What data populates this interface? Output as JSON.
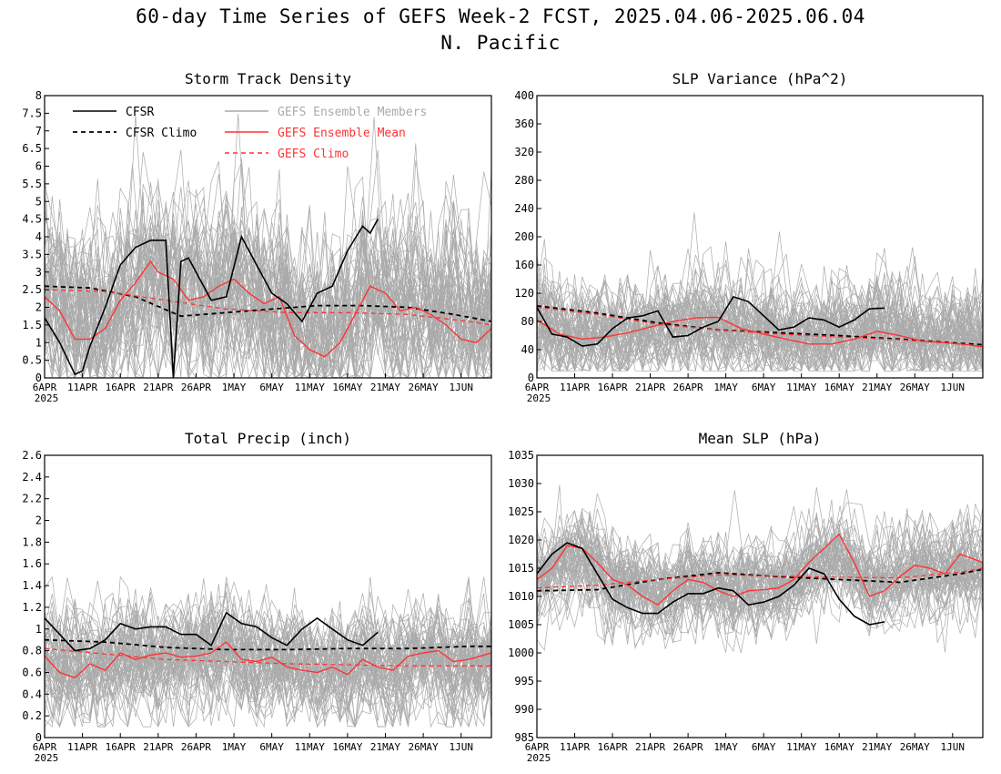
{
  "title": "60-day Time Series of GEFS Week-2 FCST, 2025.04.06-2025.06.04",
  "subtitle": "N. Pacific",
  "colors": {
    "cfsr": "#000000",
    "ens_member": "#aaaaaa",
    "ens_mean": "#ff3333",
    "gefs_climo": "#ff3333"
  },
  "legend": {
    "cfsr": "CFSR",
    "cfsr_climo": "CFSR Climo",
    "ens_members": "GEFS Ensemble Members",
    "ens_mean": "GEFS Ensemble Mean",
    "gefs_climo": "GEFS Climo"
  },
  "x_ticks": [
    "6APR",
    "11APR",
    "16APR",
    "21APR",
    "26APR",
    "1MAY",
    "6MAY",
    "11MAY",
    "16MAY",
    "21MAY",
    "26MAY",
    "1JUN"
  ],
  "x_year": "2025",
  "chart_data": [
    {
      "type": "line",
      "title": "Storm Track Density",
      "legend_position": "top-left",
      "x_start": "2025-04-06",
      "x_end": "2025-06-04",
      "ylim": [
        0,
        8
      ],
      "yticks": [
        "0",
        "0.5",
        "1",
        "1.5",
        "2",
        "2.5",
        "3",
        "3.5",
        "4",
        "4.5",
        "5",
        "5.5",
        "6",
        "6.5",
        "7",
        "7.5",
        "8"
      ],
      "ytick_values": [
        0,
        0.5,
        1,
        1.5,
        2,
        2.5,
        3,
        3.5,
        4,
        4.5,
        5,
        5.5,
        6,
        6.5,
        7,
        7.5,
        8
      ],
      "members_band": {
        "center": 2.2,
        "spread": 1.3,
        "min": 0,
        "max": 7.9
      },
      "series": [
        {
          "name": "CFSR",
          "x": [
            "2025-04-06",
            "2025-04-08",
            "2025-04-10",
            "2025-04-11",
            "2025-04-12",
            "2025-04-14",
            "2025-04-16",
            "2025-04-18",
            "2025-04-20",
            "2025-04-22",
            "2025-04-23",
            "2025-04-24",
            "2025-04-25",
            "2025-04-26",
            "2025-04-28",
            "2025-04-30",
            "2025-05-02",
            "2025-05-04",
            "2025-05-06",
            "2025-05-08",
            "2025-05-10",
            "2025-05-12",
            "2025-05-14",
            "2025-05-16",
            "2025-05-18",
            "2025-05-19",
            "2025-05-20"
          ],
          "y": [
            1.7,
            1.0,
            0.1,
            0.2,
            0.9,
            2.0,
            3.2,
            3.7,
            3.9,
            3.9,
            0.0,
            3.3,
            3.4,
            3.0,
            2.2,
            2.3,
            4.0,
            3.2,
            2.4,
            2.1,
            1.6,
            2.4,
            2.6,
            3.6,
            4.3,
            4.1,
            4.5
          ]
        },
        {
          "name": "CFSR Climo",
          "x": [
            "2025-04-06",
            "2025-04-12",
            "2025-04-18",
            "2025-04-24",
            "2025-04-30",
            "2025-05-06",
            "2025-05-12",
            "2025-05-18",
            "2025-05-24",
            "2025-05-30",
            "2025-06-04"
          ],
          "y": [
            2.6,
            2.55,
            2.3,
            1.75,
            1.85,
            1.95,
            2.05,
            2.05,
            2.0,
            1.8,
            1.6
          ]
        },
        {
          "name": "GEFS Ensemble Mean",
          "x": [
            "2025-04-06",
            "2025-04-08",
            "2025-04-10",
            "2025-04-12",
            "2025-04-14",
            "2025-04-16",
            "2025-04-18",
            "2025-04-20",
            "2025-04-21",
            "2025-04-23",
            "2025-04-25",
            "2025-04-27",
            "2025-04-29",
            "2025-05-01",
            "2025-05-03",
            "2025-05-05",
            "2025-05-07",
            "2025-05-09",
            "2025-05-11",
            "2025-05-13",
            "2025-05-15",
            "2025-05-17",
            "2025-05-19",
            "2025-05-21",
            "2025-05-23",
            "2025-05-25",
            "2025-05-27",
            "2025-05-29",
            "2025-05-31",
            "2025-06-02",
            "2025-06-04"
          ],
          "y": [
            2.3,
            1.9,
            1.1,
            1.1,
            1.4,
            2.2,
            2.7,
            3.3,
            3.0,
            2.8,
            2.2,
            2.3,
            2.6,
            2.8,
            2.4,
            2.1,
            2.3,
            1.2,
            0.8,
            0.6,
            1.0,
            1.8,
            2.6,
            2.4,
            1.9,
            2.0,
            1.8,
            1.5,
            1.1,
            1.0,
            1.4
          ]
        },
        {
          "name": "GEFS Climo",
          "x": [
            "2025-04-06",
            "2025-04-14",
            "2025-04-22",
            "2025-04-30",
            "2025-05-08",
            "2025-05-16",
            "2025-05-24",
            "2025-06-01",
            "2025-06-04"
          ],
          "y": [
            2.5,
            2.45,
            2.2,
            1.95,
            1.85,
            1.85,
            1.8,
            1.6,
            1.5
          ]
        }
      ]
    },
    {
      "type": "line",
      "title": "SLP Variance (hPa^2)",
      "x_start": "2025-04-06",
      "x_end": "2025-06-04",
      "ylim": [
        0,
        400
      ],
      "yticks": [
        "0",
        "40",
        "80",
        "120",
        "160",
        "200",
        "240",
        "280",
        "320",
        "360",
        "400"
      ],
      "ytick_values": [
        0,
        40,
        80,
        120,
        160,
        200,
        240,
        280,
        320,
        360,
        400
      ],
      "members_band": {
        "center": 72,
        "spread": 38,
        "min": 10,
        "max": 235
      },
      "series": [
        {
          "name": "CFSR",
          "x": [
            "2025-04-06",
            "2025-04-08",
            "2025-04-10",
            "2025-04-12",
            "2025-04-14",
            "2025-04-16",
            "2025-04-18",
            "2025-04-20",
            "2025-04-22",
            "2025-04-24",
            "2025-04-26",
            "2025-04-28",
            "2025-04-30",
            "2025-05-02",
            "2025-05-04",
            "2025-05-06",
            "2025-05-08",
            "2025-05-10",
            "2025-05-12",
            "2025-05-14",
            "2025-05-16",
            "2025-05-18",
            "2025-05-20",
            "2025-05-22"
          ],
          "y": [
            100,
            62,
            58,
            45,
            48,
            70,
            85,
            88,
            95,
            58,
            60,
            72,
            80,
            115,
            108,
            88,
            68,
            72,
            85,
            82,
            72,
            82,
            98,
            99
          ]
        },
        {
          "name": "CFSR Climo",
          "x": [
            "2025-04-06",
            "2025-04-14",
            "2025-04-22",
            "2025-04-30",
            "2025-05-08",
            "2025-05-16",
            "2025-05-24",
            "2025-06-01",
            "2025-06-04"
          ],
          "y": [
            102,
            92,
            78,
            68,
            64,
            60,
            55,
            49,
            47
          ]
        },
        {
          "name": "GEFS Ensemble Mean",
          "x": [
            "2025-04-06",
            "2025-04-09",
            "2025-04-12",
            "2025-04-15",
            "2025-04-18",
            "2025-04-21",
            "2025-04-24",
            "2025-04-27",
            "2025-04-30",
            "2025-05-03",
            "2025-05-06",
            "2025-05-09",
            "2025-05-12",
            "2025-05-15",
            "2025-05-18",
            "2025-05-21",
            "2025-05-24",
            "2025-05-27",
            "2025-05-30",
            "2025-06-02",
            "2025-06-04"
          ],
          "y": [
            82,
            62,
            55,
            58,
            64,
            72,
            80,
            85,
            86,
            70,
            62,
            55,
            48,
            48,
            55,
            66,
            60,
            52,
            50,
            47,
            44
          ]
        },
        {
          "name": "GEFS Climo",
          "x": [
            "2025-04-06",
            "2025-04-14",
            "2025-04-22",
            "2025-04-30",
            "2025-05-08",
            "2025-05-16",
            "2025-05-24",
            "2025-06-01",
            "2025-06-04"
          ],
          "y": [
            100,
            90,
            76,
            68,
            62,
            58,
            54,
            48,
            45
          ]
        }
      ]
    },
    {
      "type": "line",
      "title": "Total Precip (inch)",
      "x_start": "2025-04-06",
      "x_end": "2025-06-04",
      "ylim": [
        0,
        2.6
      ],
      "yticks": [
        "0",
        "0.2",
        "0.4",
        "0.6",
        "0.8",
        "1",
        "1.2",
        "1.4",
        "1.6",
        "1.8",
        "2",
        "2.2",
        "2.4",
        "2.6"
      ],
      "ytick_values": [
        0,
        0.2,
        0.4,
        0.6,
        0.8,
        1,
        1.2,
        1.4,
        1.6,
        1.8,
        2,
        2.2,
        2.4,
        2.6
      ],
      "members_band": {
        "center": 0.72,
        "spread": 0.24,
        "min": 0.1,
        "max": 1.48
      },
      "series": [
        {
          "name": "CFSR",
          "x": [
            "2025-04-06",
            "2025-04-08",
            "2025-04-10",
            "2025-04-12",
            "2025-04-14",
            "2025-04-16",
            "2025-04-18",
            "2025-04-20",
            "2025-04-22",
            "2025-04-24",
            "2025-04-26",
            "2025-04-28",
            "2025-04-30",
            "2025-05-02",
            "2025-05-04",
            "2025-05-06",
            "2025-05-08",
            "2025-05-10",
            "2025-05-12",
            "2025-05-14",
            "2025-05-16",
            "2025-05-18",
            "2025-05-20"
          ],
          "y": [
            1.1,
            0.95,
            0.8,
            0.82,
            0.9,
            1.05,
            1.0,
            1.02,
            1.02,
            0.95,
            0.95,
            0.85,
            1.15,
            1.05,
            1.02,
            0.92,
            0.85,
            1.0,
            1.1,
            1.0,
            0.9,
            0.85,
            0.97
          ]
        },
        {
          "name": "CFSR Climo",
          "x": [
            "2025-04-06",
            "2025-04-14",
            "2025-04-22",
            "2025-04-30",
            "2025-05-08",
            "2025-05-16",
            "2025-05-24",
            "2025-06-01",
            "2025-06-04"
          ],
          "y": [
            0.9,
            0.88,
            0.83,
            0.81,
            0.81,
            0.82,
            0.82,
            0.84,
            0.84
          ]
        },
        {
          "name": "GEFS Ensemble Mean",
          "x": [
            "2025-04-06",
            "2025-04-08",
            "2025-04-10",
            "2025-04-12",
            "2025-04-14",
            "2025-04-16",
            "2025-04-18",
            "2025-04-20",
            "2025-04-22",
            "2025-04-24",
            "2025-04-26",
            "2025-04-28",
            "2025-04-30",
            "2025-05-02",
            "2025-05-04",
            "2025-05-06",
            "2025-05-08",
            "2025-05-10",
            "2025-05-12",
            "2025-05-14",
            "2025-05-16",
            "2025-05-18",
            "2025-05-20",
            "2025-05-22",
            "2025-05-24",
            "2025-05-26",
            "2025-05-28",
            "2025-05-30",
            "2025-06-01",
            "2025-06-04"
          ],
          "y": [
            0.75,
            0.6,
            0.55,
            0.68,
            0.62,
            0.78,
            0.72,
            0.76,
            0.78,
            0.74,
            0.75,
            0.78,
            0.88,
            0.72,
            0.7,
            0.74,
            0.65,
            0.62,
            0.6,
            0.65,
            0.58,
            0.72,
            0.65,
            0.62,
            0.75,
            0.78,
            0.8,
            0.7,
            0.72,
            0.78
          ]
        },
        {
          "name": "GEFS Climo",
          "x": [
            "2025-04-06",
            "2025-04-14",
            "2025-04-22",
            "2025-04-30",
            "2025-05-08",
            "2025-05-16",
            "2025-05-24",
            "2025-06-01",
            "2025-06-04"
          ],
          "y": [
            0.82,
            0.77,
            0.72,
            0.7,
            0.68,
            0.67,
            0.66,
            0.66,
            0.66
          ]
        }
      ]
    },
    {
      "type": "line",
      "title": "Mean SLP (hPa)",
      "x_start": "2025-04-06",
      "x_end": "2025-06-04",
      "ylim": [
        985,
        1035
      ],
      "yticks": [
        "985",
        "990",
        "995",
        "1000",
        "1005",
        "1010",
        "1015",
        "1020",
        "1025",
        "1030",
        "1035"
      ],
      "ytick_values": [
        985,
        990,
        995,
        1000,
        1005,
        1010,
        1015,
        1020,
        1025,
        1030,
        1035
      ],
      "members_band": {
        "center": 1013.5,
        "spread": 4.2,
        "min": 1000,
        "max": 1030
      },
      "series": [
        {
          "name": "CFSR",
          "x": [
            "2025-04-06",
            "2025-04-08",
            "2025-04-10",
            "2025-04-12",
            "2025-04-14",
            "2025-04-16",
            "2025-04-18",
            "2025-04-20",
            "2025-04-22",
            "2025-04-24",
            "2025-04-26",
            "2025-04-28",
            "2025-04-30",
            "2025-05-02",
            "2025-05-04",
            "2025-05-06",
            "2025-05-08",
            "2025-05-10",
            "2025-05-12",
            "2025-05-14",
            "2025-05-16",
            "2025-05-18",
            "2025-05-20",
            "2025-05-22"
          ],
          "y": [
            1014,
            1017.5,
            1019.5,
            1018.5,
            1014,
            1009.5,
            1008,
            1007,
            1007,
            1009,
            1010.5,
            1010.5,
            1011.5,
            1011,
            1008.5,
            1009,
            1010,
            1012,
            1015,
            1014,
            1009.5,
            1006.5,
            1005,
            1005.5
          ]
        },
        {
          "name": "CFSR Climo",
          "x": [
            "2025-04-06",
            "2025-04-14",
            "2025-04-22",
            "2025-04-30",
            "2025-05-08",
            "2025-05-16",
            "2025-05-24",
            "2025-06-01",
            "2025-06-04"
          ],
          "y": [
            1011,
            1011.2,
            1013,
            1014.2,
            1013.5,
            1013,
            1012.5,
            1014,
            1014.8
          ]
        },
        {
          "name": "GEFS Ensemble Mean",
          "x": [
            "2025-04-06",
            "2025-04-08",
            "2025-04-10",
            "2025-04-12",
            "2025-04-14",
            "2025-04-16",
            "2025-04-18",
            "2025-04-20",
            "2025-04-22",
            "2025-04-24",
            "2025-04-26",
            "2025-04-28",
            "2025-04-30",
            "2025-05-02",
            "2025-05-04",
            "2025-05-06",
            "2025-05-08",
            "2025-05-10",
            "2025-05-12",
            "2025-05-14",
            "2025-05-16",
            "2025-05-18",
            "2025-05-20",
            "2025-05-22",
            "2025-05-24",
            "2025-05-26",
            "2025-05-28",
            "2025-05-30",
            "2025-06-01",
            "2025-06-04"
          ],
          "y": [
            1013,
            1015,
            1019,
            1018.5,
            1016,
            1013,
            1012,
            1010,
            1008.5,
            1011,
            1013,
            1012.5,
            1011,
            1010,
            1011,
            1011.2,
            1011.5,
            1013,
            1016,
            1018.5,
            1021,
            1016,
            1010,
            1011,
            1013.5,
            1015.5,
            1015,
            1014,
            1017.5,
            1016
          ]
        },
        {
          "name": "GEFS Climo",
          "x": [
            "2025-04-06",
            "2025-04-14",
            "2025-04-22",
            "2025-04-30",
            "2025-05-08",
            "2025-05-16",
            "2025-05-24",
            "2025-06-01",
            "2025-06-04"
          ],
          "y": [
            1011.5,
            1012,
            1013,
            1013.8,
            1013.6,
            1013.4,
            1013.3,
            1014.3,
            1015
          ]
        }
      ]
    }
  ]
}
